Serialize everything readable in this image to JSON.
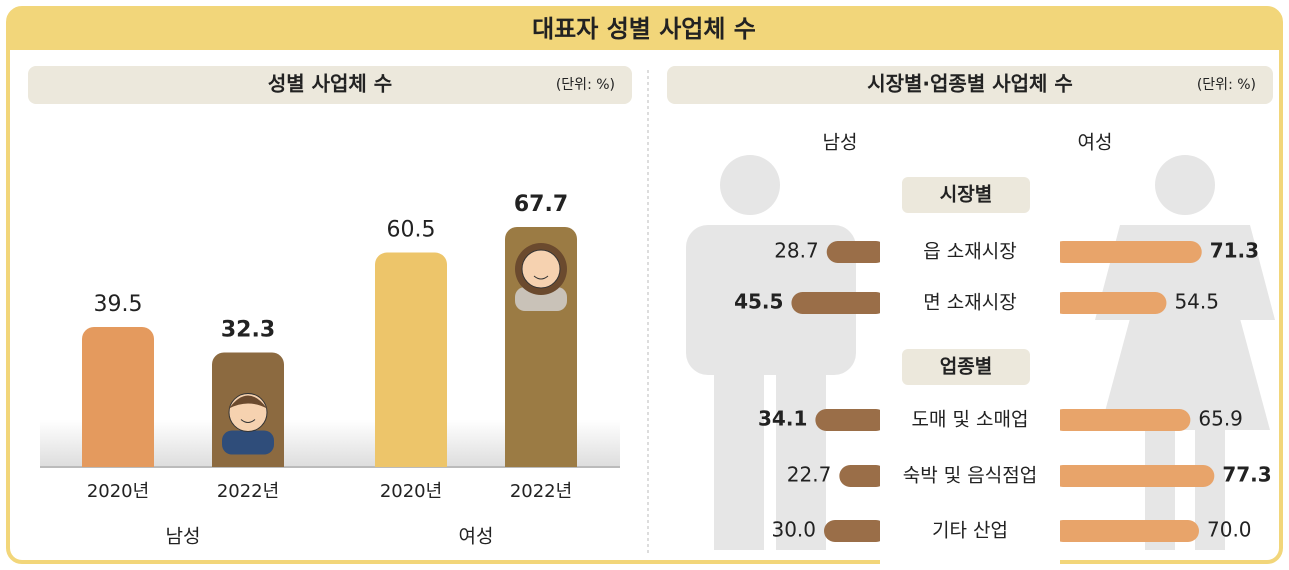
{
  "title": "대표자 성별 사업체 수",
  "chart_data": [
    {
      "type": "bar",
      "title": "성별 사업체 수",
      "unit": "(단위: %)",
      "group_labels": [
        "남성",
        "여성"
      ],
      "categories": [
        "2020년",
        "2022년",
        "2020년",
        "2022년"
      ],
      "values": [
        39.5,
        32.3,
        60.5,
        67.7
      ],
      "colors": [
        "#e49a5e",
        "#8c6a40",
        "#edc56a",
        "#9b7b44"
      ],
      "bold": [
        false,
        true,
        false,
        true
      ]
    },
    {
      "type": "butterfly",
      "title": "시장별·업종별 사업체 수",
      "unit": "(단위: %)",
      "groups": [
        {
          "name": "시장별",
          "categories": [
            "읍 소재시장",
            "면 소재시장"
          ]
        },
        {
          "name": "업종별",
          "categories": [
            "도매 및 소매업",
            "숙박 및 음식점업",
            "기타 산업"
          ]
        }
      ],
      "series": [
        {
          "name": "남성",
          "color": "#9a6e48",
          "values": [
            28.7,
            45.5,
            34.1,
            22.7,
            30.0
          ],
          "value_labels": [
            "28.7",
            "45.5",
            "34.1",
            "22.7",
            "30.0"
          ],
          "bold": [
            false,
            true,
            true,
            false,
            false
          ]
        },
        {
          "name": "여성",
          "color": "#e8a46a",
          "values": [
            71.3,
            54.5,
            65.9,
            77.3,
            70.0
          ],
          "value_labels": [
            "71.3",
            "54.5",
            "65.9",
            "77.3",
            "70.0"
          ],
          "bold": [
            true,
            false,
            false,
            true,
            false
          ]
        }
      ]
    }
  ]
}
